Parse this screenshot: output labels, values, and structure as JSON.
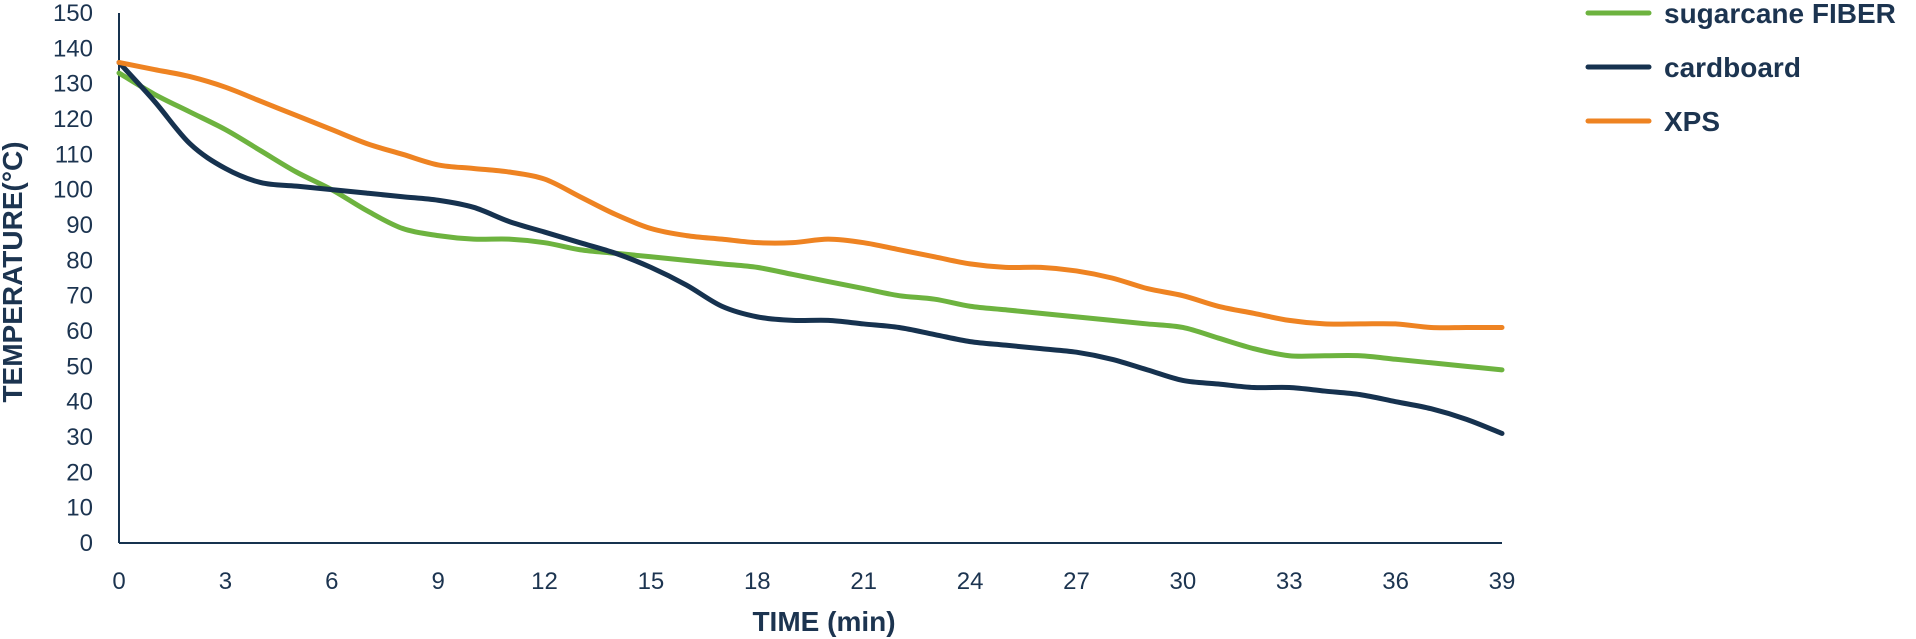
{
  "chart_data": {
    "type": "line",
    "title": "",
    "xlabel": "TIME (min)",
    "ylabel": "TEMPERATURE(°C)",
    "xlim": [
      0,
      39
    ],
    "ylim": [
      0,
      150
    ],
    "x_ticks": [
      0,
      3,
      6,
      9,
      12,
      15,
      18,
      21,
      24,
      27,
      30,
      33,
      36,
      39
    ],
    "y_ticks": [
      0,
      10,
      20,
      30,
      40,
      50,
      60,
      70,
      80,
      90,
      100,
      110,
      120,
      130,
      140,
      150
    ],
    "grid": false,
    "legend_position": "top-right",
    "x": [
      0,
      1,
      2,
      3,
      4,
      5,
      6,
      7,
      8,
      9,
      10,
      11,
      12,
      13,
      14,
      15,
      16,
      17,
      18,
      19,
      20,
      21,
      22,
      23,
      24,
      25,
      26,
      27,
      28,
      29,
      30,
      31,
      32,
      33,
      34,
      35,
      36,
      37,
      38,
      39
    ],
    "series": [
      {
        "name": "sugarcane FIBER",
        "color": "#6db33f",
        "values": [
          133,
          127,
          122,
          117,
          111,
          105,
          100,
          94,
          89,
          87,
          86,
          86,
          85,
          83,
          82,
          81,
          80,
          79,
          78,
          76,
          74,
          72,
          70,
          69,
          67,
          66,
          65,
          64,
          63,
          62,
          61,
          58,
          55,
          53,
          53,
          53,
          52,
          51,
          50,
          49
        ]
      },
      {
        "name": "cardboard",
        "color": "#16324f",
        "values": [
          136,
          125,
          113,
          106,
          102,
          101,
          100,
          99,
          98,
          97,
          95,
          91,
          88,
          85,
          82,
          78,
          73,
          67,
          64,
          63,
          63,
          62,
          61,
          59,
          57,
          56,
          55,
          54,
          52,
          49,
          46,
          45,
          44,
          44,
          43,
          42,
          40,
          38,
          35,
          31
        ]
      },
      {
        "name": "XPS",
        "color": "#ee8322",
        "values": [
          136,
          134,
          132,
          129,
          125,
          121,
          117,
          113,
          110,
          107,
          106,
          105,
          103,
          98,
          93,
          89,
          87,
          86,
          85,
          85,
          86,
          85,
          83,
          81,
          79,
          78,
          78,
          77,
          75,
          72,
          70,
          67,
          65,
          63,
          62,
          62,
          62,
          61,
          61,
          61
        ]
      }
    ]
  }
}
